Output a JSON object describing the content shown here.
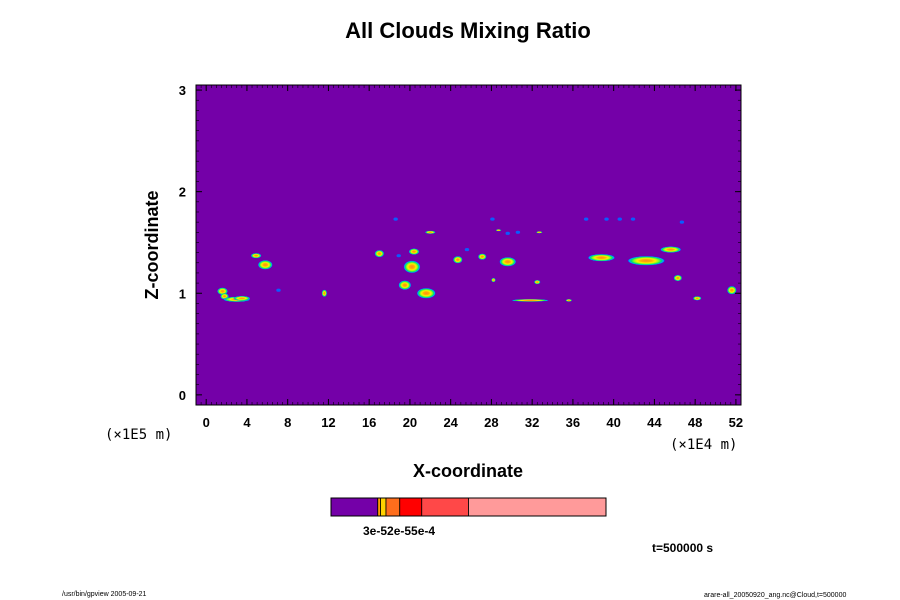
{
  "chart_data": {
    "type": "heatmap",
    "title": "All Clouds Mixing Ratio",
    "xlabel": "X-coordinate",
    "ylabel": "Z-coordinate",
    "xlim": [
      -1,
      52.5
    ],
    "ylim": [
      -0.1,
      3.05
    ],
    "x_ticks": [
      0,
      4,
      8,
      12,
      16,
      20,
      24,
      28,
      32,
      36,
      40,
      44,
      48,
      52
    ],
    "y_ticks": [
      0,
      1,
      2,
      3
    ],
    "x_unit_label": "(×1E4 m)",
    "y_unit_label": "(×1E5 m)",
    "background_color": "#7400a8",
    "colorbar": {
      "colors": [
        "#7400a8",
        "#ff9c00",
        "#ffd200",
        "#ff6e1c",
        "#ff0000",
        "#ff4848",
        "#ff9a9a"
      ],
      "bounds": [
        0,
        0.17,
        0.18,
        0.2,
        0.25,
        0.33,
        0.5,
        1.0
      ],
      "label": "3e-52e-55e-4"
    },
    "time_label": "t=500000 s",
    "footer_left": "/usr/bin/gpview 2005-09-21",
    "footer_right": "arare-all_20050920_ang.nc@Cloud,t=500000",
    "clouds": [
      {
        "x": 1.6,
        "z": 1.02,
        "w": 1.0,
        "h": 0.07
      },
      {
        "x": 1.8,
        "z": 0.97,
        "w": 0.8,
        "h": 0.06
      },
      {
        "x": 3.0,
        "z": 0.94,
        "w": 2.6,
        "h": 0.05
      },
      {
        "x": 3.5,
        "z": 0.95,
        "w": 1.6,
        "h": 0.045
      },
      {
        "x": 5.8,
        "z": 1.28,
        "w": 1.4,
        "h": 0.09
      },
      {
        "x": 4.9,
        "z": 1.37,
        "w": 1.0,
        "h": 0.05
      },
      {
        "x": 11.6,
        "z": 1.0,
        "w": 0.5,
        "h": 0.07
      },
      {
        "x": 17.0,
        "z": 1.39,
        "w": 0.9,
        "h": 0.07
      },
      {
        "x": 20.2,
        "z": 1.26,
        "w": 1.6,
        "h": 0.12
      },
      {
        "x": 19.5,
        "z": 1.08,
        "w": 1.2,
        "h": 0.09
      },
      {
        "x": 21.6,
        "z": 1.0,
        "w": 1.8,
        "h": 0.1
      },
      {
        "x": 20.4,
        "z": 1.41,
        "w": 1.0,
        "h": 0.06
      },
      {
        "x": 22.0,
        "z": 1.6,
        "w": 1.0,
        "h": 0.03
      },
      {
        "x": 24.7,
        "z": 1.33,
        "w": 0.9,
        "h": 0.07
      },
      {
        "x": 27.1,
        "z": 1.36,
        "w": 0.8,
        "h": 0.06
      },
      {
        "x": 29.6,
        "z": 1.31,
        "w": 1.6,
        "h": 0.09
      },
      {
        "x": 31.8,
        "z": 0.93,
        "w": 3.6,
        "h": 0.025
      },
      {
        "x": 35.6,
        "z": 0.93,
        "w": 0.6,
        "h": 0.025
      },
      {
        "x": 28.2,
        "z": 1.13,
        "w": 0.4,
        "h": 0.04
      },
      {
        "x": 28.7,
        "z": 1.62,
        "w": 0.5,
        "h": 0.02
      },
      {
        "x": 32.7,
        "z": 1.6,
        "w": 0.6,
        "h": 0.02
      },
      {
        "x": 38.8,
        "z": 1.35,
        "w": 2.6,
        "h": 0.07
      },
      {
        "x": 43.2,
        "z": 1.32,
        "w": 3.6,
        "h": 0.09
      },
      {
        "x": 45.6,
        "z": 1.43,
        "w": 2.0,
        "h": 0.06
      },
      {
        "x": 46.3,
        "z": 1.15,
        "w": 0.8,
        "h": 0.06
      },
      {
        "x": 48.2,
        "z": 0.95,
        "w": 0.8,
        "h": 0.04
      },
      {
        "x": 51.6,
        "z": 1.03,
        "w": 0.9,
        "h": 0.08
      },
      {
        "x": 32.5,
        "z": 1.11,
        "w": 0.6,
        "h": 0.04
      }
    ],
    "blue_specks": [
      {
        "x": 18.6,
        "z": 1.73
      },
      {
        "x": 28.1,
        "z": 1.73
      },
      {
        "x": 29.6,
        "z": 1.59
      },
      {
        "x": 30.6,
        "z": 1.6
      },
      {
        "x": 37.3,
        "z": 1.73
      },
      {
        "x": 39.3,
        "z": 1.73
      },
      {
        "x": 40.6,
        "z": 1.73
      },
      {
        "x": 41.9,
        "z": 1.73
      },
      {
        "x": 46.7,
        "z": 1.7
      },
      {
        "x": 18.9,
        "z": 1.37
      },
      {
        "x": 25.6,
        "z": 1.43
      },
      {
        "x": 7.1,
        "z": 1.03
      }
    ]
  }
}
